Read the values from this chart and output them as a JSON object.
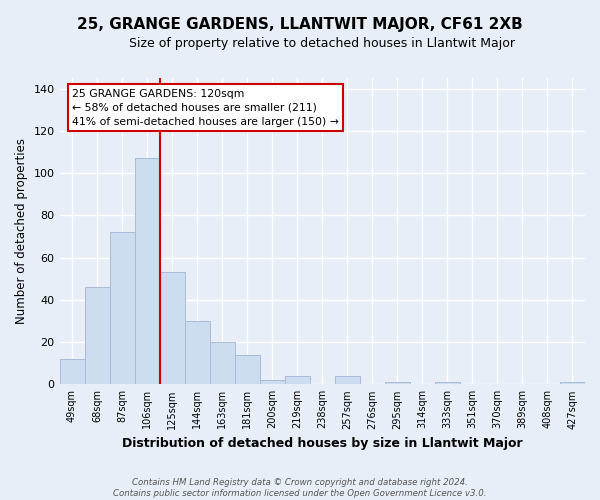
{
  "title": "25, GRANGE GARDENS, LLANTWIT MAJOR, CF61 2XB",
  "subtitle": "Size of property relative to detached houses in Llantwit Major",
  "xlabel": "Distribution of detached houses by size in Llantwit Major",
  "ylabel": "Number of detached properties",
  "bar_labels": [
    "49sqm",
    "68sqm",
    "87sqm",
    "106sqm",
    "125sqm",
    "144sqm",
    "163sqm",
    "181sqm",
    "200sqm",
    "219sqm",
    "238sqm",
    "257sqm",
    "276sqm",
    "295sqm",
    "314sqm",
    "333sqm",
    "351sqm",
    "370sqm",
    "389sqm",
    "408sqm",
    "427sqm"
  ],
  "bar_values": [
    12,
    46,
    72,
    107,
    53,
    30,
    20,
    14,
    2,
    4,
    0,
    4,
    0,
    1,
    0,
    1,
    0,
    0,
    0,
    0,
    1
  ],
  "bar_color": "#ccddf0",
  "bar_edge_color": "#aabbd8",
  "property_line_color": "#cc0000",
  "ylim": [
    0,
    145
  ],
  "yticks": [
    0,
    20,
    40,
    60,
    80,
    100,
    120,
    140
  ],
  "annotation_title": "25 GRANGE GARDENS: 120sqm",
  "annotation_line1": "← 58% of detached houses are smaller (211)",
  "annotation_line2": "41% of semi-detached houses are larger (150) →",
  "annotation_box_color": "#ffffff",
  "annotation_box_edge": "#cc0000",
  "footer_line1": "Contains HM Land Registry data © Crown copyright and database right 2024.",
  "footer_line2": "Contains public sector information licensed under the Open Government Licence v3.0.",
  "background_color": "#e8eef8",
  "grid_color": "#ffffff",
  "title_fontsize": 11,
  "subtitle_fontsize": 9
}
